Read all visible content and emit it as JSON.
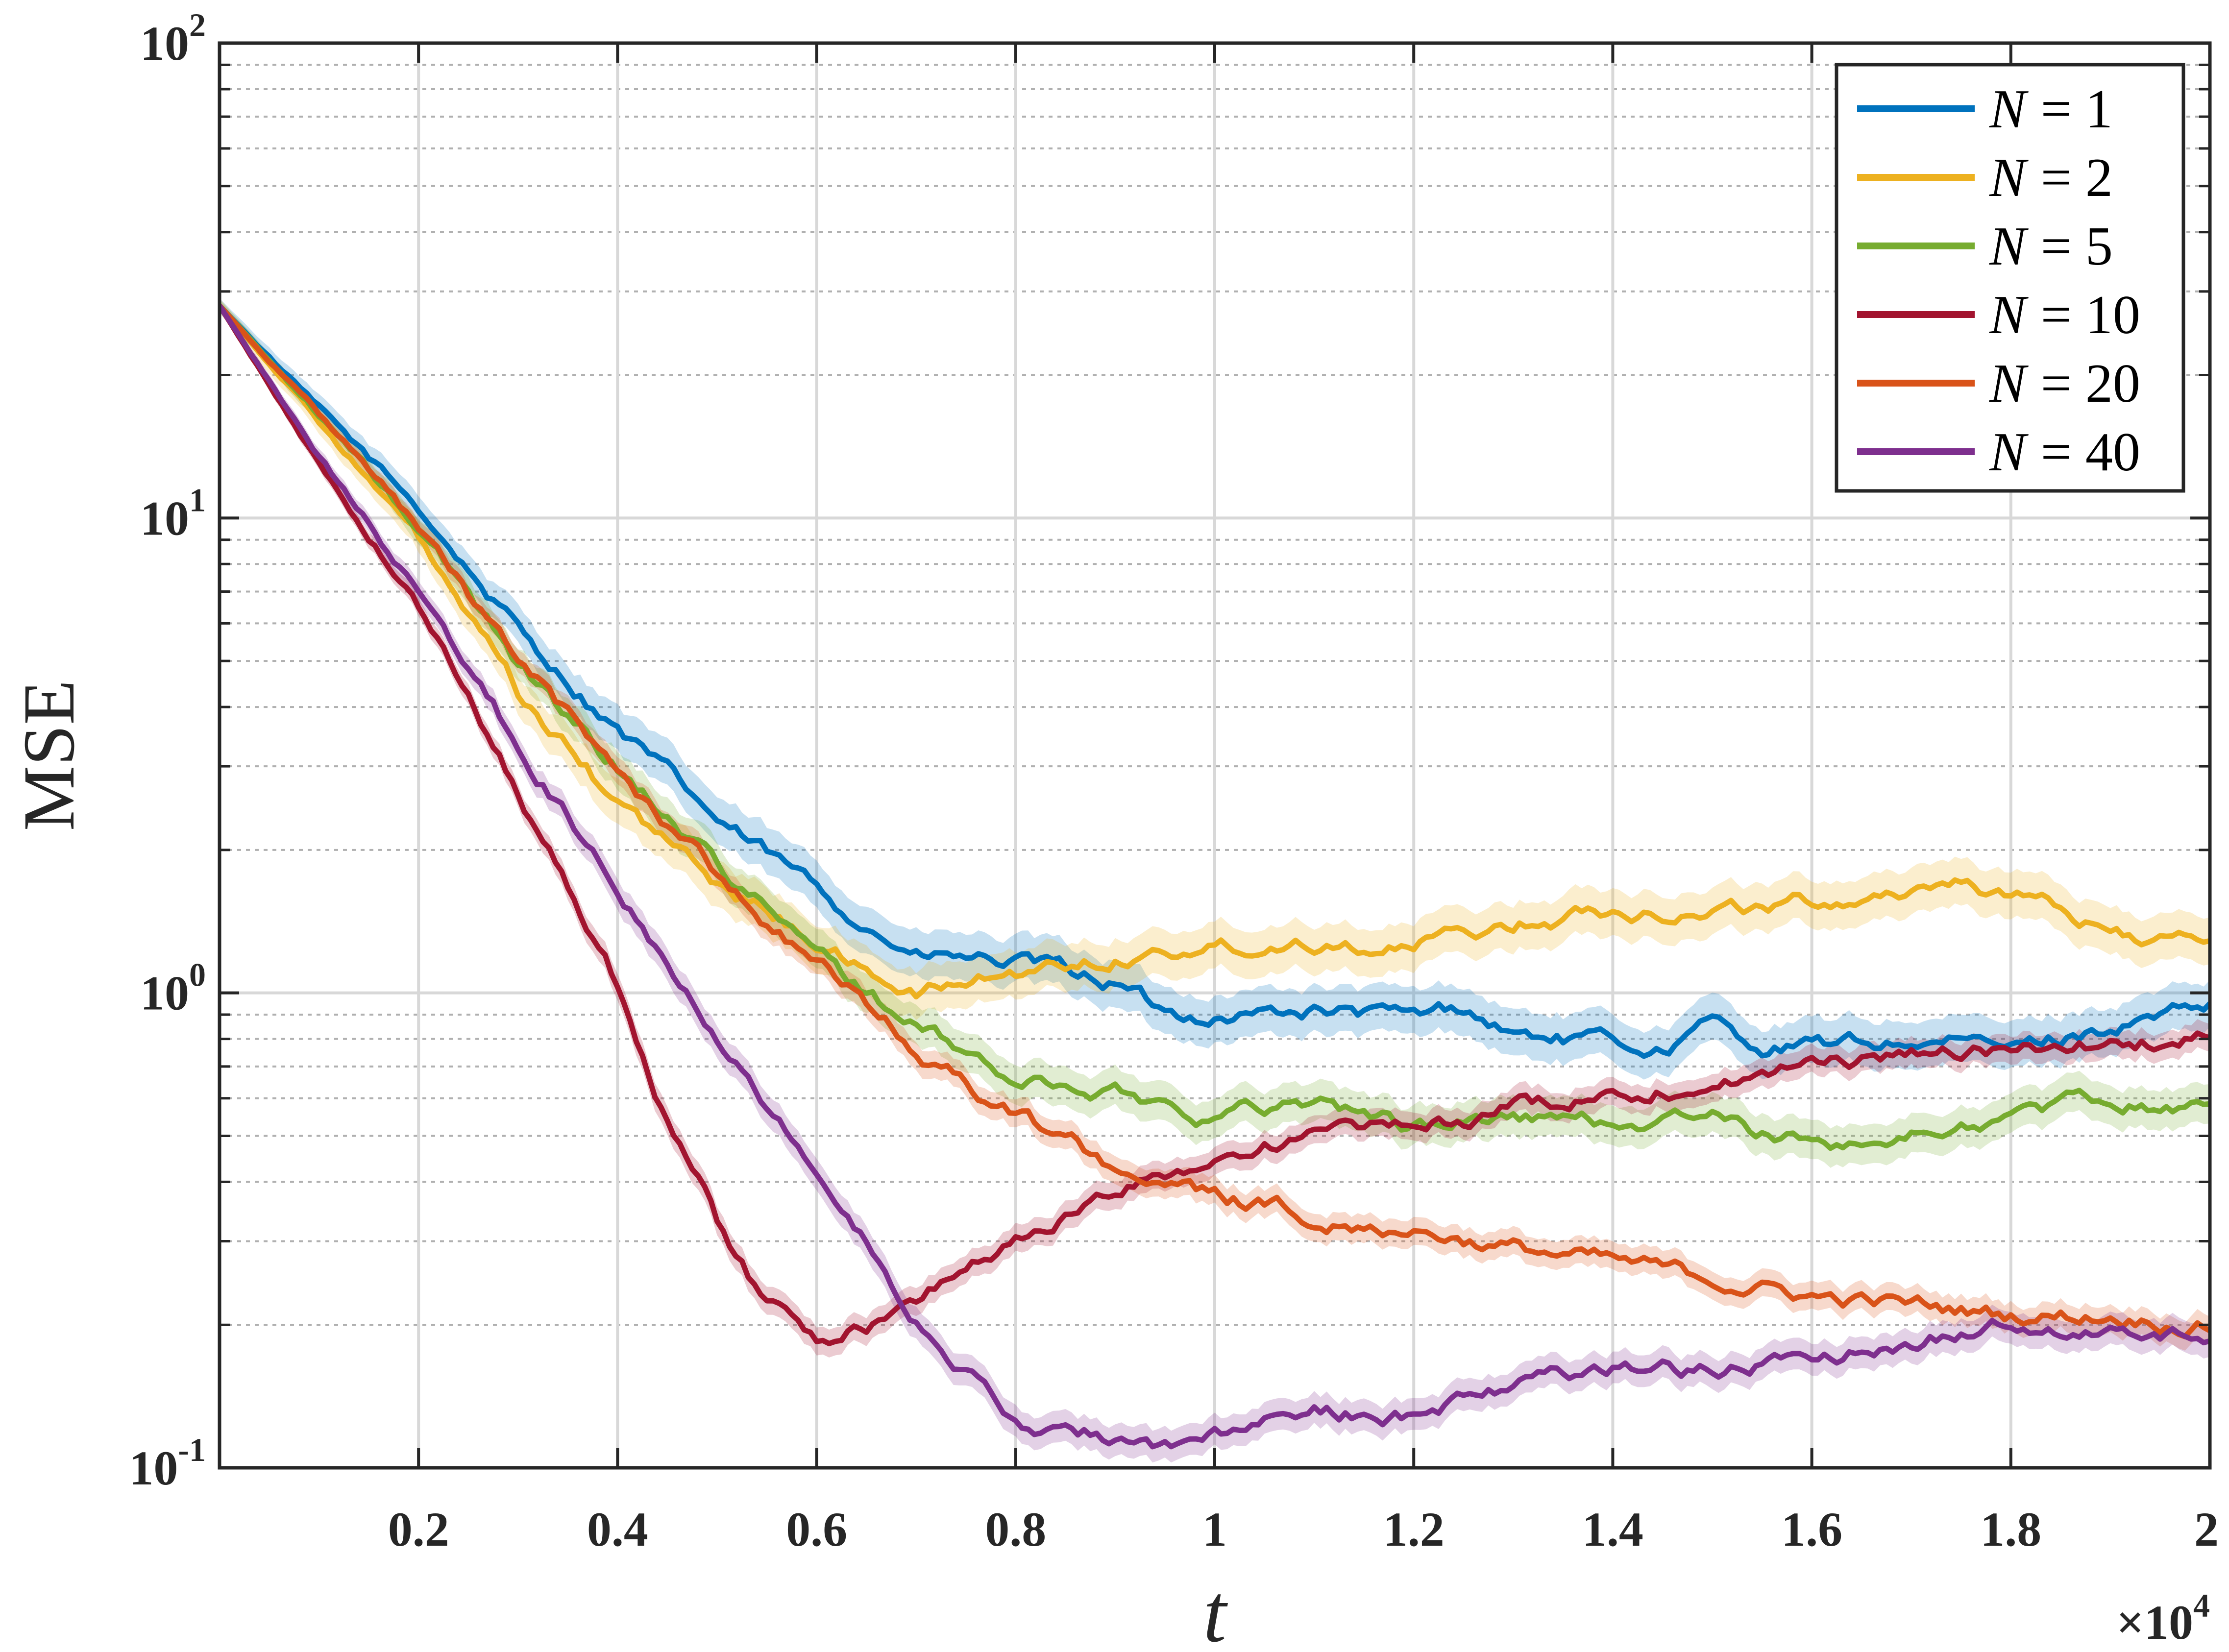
{
  "chart_data": {
    "type": "line",
    "title": "",
    "xlabel": "t",
    "ylabel": "MSE",
    "x_exponent_label": "×10",
    "x_exponent_power": "4",
    "x_scale": "linear",
    "y_scale": "log",
    "xlim": [
      0,
      20000
    ],
    "ylim": [
      0.1,
      100
    ],
    "grid": true,
    "legend_position": "top-right",
    "x_ticks": [
      2000,
      4000,
      6000,
      8000,
      10000,
      12000,
      14000,
      16000,
      18000,
      20000
    ],
    "x_tick_labels": [
      "0.2",
      "0.4",
      "0.6",
      "0.8",
      "1",
      "1.2",
      "1.4",
      "1.6",
      "1.8",
      "2"
    ],
    "y_ticks": [
      {
        "value": 0.1,
        "base": "10",
        "exp": "-1"
      },
      {
        "value": 1,
        "base": "10",
        "exp": "0"
      },
      {
        "value": 10,
        "base": "10",
        "exp": "1"
      },
      {
        "value": 100,
        "base": "10",
        "exp": "2"
      }
    ],
    "series": [
      {
        "name_var": "N",
        "name_eq": "= 1",
        "color": "#0072BD",
        "band": 0.12,
        "points": [
          [
            0,
            28
          ],
          [
            1000,
            17
          ],
          [
            2000,
            10.5
          ],
          [
            3000,
            5.8
          ],
          [
            4000,
            3.6
          ],
          [
            5000,
            2.3
          ],
          [
            6000,
            1.65
          ],
          [
            6500,
            1.4
          ],
          [
            7000,
            1.2
          ],
          [
            8000,
            1.15
          ],
          [
            9000,
            1.05
          ],
          [
            9500,
            0.9
          ],
          [
            10000,
            0.9
          ],
          [
            11000,
            0.92
          ],
          [
            12000,
            0.88
          ],
          [
            12500,
            0.93
          ],
          [
            13000,
            0.82
          ],
          [
            14000,
            0.78
          ],
          [
            14500,
            0.76
          ],
          [
            15000,
            0.86
          ],
          [
            15500,
            0.77
          ],
          [
            16000,
            0.77
          ],
          [
            17000,
            0.79
          ],
          [
            17500,
            0.78
          ],
          [
            18000,
            0.76
          ],
          [
            19000,
            0.85
          ],
          [
            20000,
            0.92
          ]
        ]
      },
      {
        "name_var": "N",
        "name_eq": "= 2",
        "color": "#EDB120",
        "band": 0.12,
        "points": [
          [
            0,
            28
          ],
          [
            1000,
            16
          ],
          [
            2000,
            9
          ],
          [
            3000,
            4.2
          ],
          [
            4000,
            2.5
          ],
          [
            5000,
            1.7
          ],
          [
            6000,
            1.3
          ],
          [
            6500,
            1.1
          ],
          [
            7000,
            1.0
          ],
          [
            7500,
            1.05
          ],
          [
            8000,
            1.1
          ],
          [
            9000,
            1.2
          ],
          [
            10000,
            1.25
          ],
          [
            11000,
            1.3
          ],
          [
            12000,
            1.25
          ],
          [
            13000,
            1.4
          ],
          [
            14000,
            1.5
          ],
          [
            15000,
            1.5
          ],
          [
            16000,
            1.55
          ],
          [
            17000,
            1.65
          ],
          [
            17500,
            1.75
          ],
          [
            18000,
            1.6
          ],
          [
            19000,
            1.35
          ],
          [
            20000,
            1.25
          ]
        ]
      },
      {
        "name_var": "N",
        "name_eq": "= 5",
        "color": "#77AC30",
        "band": 0.1,
        "points": [
          [
            0,
            28
          ],
          [
            1000,
            16.5
          ],
          [
            2000,
            9.5
          ],
          [
            3000,
            5.0
          ],
          [
            4000,
            3.0
          ],
          [
            5000,
            1.9
          ],
          [
            6000,
            1.2
          ],
          [
            7000,
            0.85
          ],
          [
            8000,
            0.65
          ],
          [
            9000,
            0.62
          ],
          [
            10000,
            0.55
          ],
          [
            11000,
            0.6
          ],
          [
            12000,
            0.52
          ],
          [
            13000,
            0.55
          ],
          [
            14000,
            0.53
          ],
          [
            15000,
            0.55
          ],
          [
            15500,
            0.5
          ],
          [
            16000,
            0.48
          ],
          [
            17000,
            0.5
          ],
          [
            18000,
            0.55
          ],
          [
            19000,
            0.6
          ],
          [
            20000,
            0.57
          ]
        ]
      },
      {
        "name_var": "N",
        "name_eq": "= 10",
        "color": "#A2142F",
        "band": 0.07,
        "points": [
          [
            0,
            28
          ],
          [
            1000,
            13
          ],
          [
            2000,
            6.5
          ],
          [
            3000,
            2.7
          ],
          [
            4000,
            1.05
          ],
          [
            4500,
            0.55
          ],
          [
            5000,
            0.33
          ],
          [
            5500,
            0.22
          ],
          [
            6000,
            0.19
          ],
          [
            6500,
            0.2
          ],
          [
            7000,
            0.22
          ],
          [
            7500,
            0.27
          ],
          [
            8000,
            0.3
          ],
          [
            9000,
            0.38
          ],
          [
            10000,
            0.45
          ],
          [
            11000,
            0.5
          ],
          [
            12000,
            0.52
          ],
          [
            13000,
            0.57
          ],
          [
            14000,
            0.62
          ],
          [
            15000,
            0.65
          ],
          [
            16000,
            0.7
          ],
          [
            17000,
            0.75
          ],
          [
            18000,
            0.75
          ],
          [
            19000,
            0.78
          ],
          [
            20000,
            0.8
          ]
        ]
      },
      {
        "name_var": "N",
        "name_eq": "= 20",
        "color": "#D95319",
        "band": 0.07,
        "points": [
          [
            0,
            28
          ],
          [
            1000,
            16.5
          ],
          [
            2000,
            9.5
          ],
          [
            3000,
            5.0
          ],
          [
            4000,
            2.9
          ],
          [
            5000,
            1.8
          ],
          [
            6000,
            1.15
          ],
          [
            7000,
            0.75
          ],
          [
            8000,
            0.55
          ],
          [
            9000,
            0.43
          ],
          [
            10000,
            0.37
          ],
          [
            11000,
            0.34
          ],
          [
            12000,
            0.32
          ],
          [
            13000,
            0.29
          ],
          [
            14000,
            0.27
          ],
          [
            15000,
            0.25
          ],
          [
            16000,
            0.23
          ],
          [
            17000,
            0.22
          ],
          [
            18000,
            0.21
          ],
          [
            19000,
            0.21
          ],
          [
            20000,
            0.2
          ]
        ]
      },
      {
        "name_var": "N",
        "name_eq": "= 40",
        "color": "#7E2F8E",
        "band": 0.08,
        "points": [
          [
            0,
            28
          ],
          [
            1000,
            13.5
          ],
          [
            2000,
            7
          ],
          [
            3000,
            3.3
          ],
          [
            4000,
            1.7
          ],
          [
            5000,
            0.85
          ],
          [
            6000,
            0.42
          ],
          [
            7000,
            0.21
          ],
          [
            7500,
            0.16
          ],
          [
            8000,
            0.125
          ],
          [
            8500,
            0.115
          ],
          [
            9000,
            0.115
          ],
          [
            9500,
            0.11
          ],
          [
            10000,
            0.115
          ],
          [
            11000,
            0.13
          ],
          [
            12000,
            0.13
          ],
          [
            13000,
            0.15
          ],
          [
            14000,
            0.165
          ],
          [
            15000,
            0.16
          ],
          [
            16000,
            0.17
          ],
          [
            17000,
            0.185
          ],
          [
            18000,
            0.2
          ],
          [
            19000,
            0.195
          ],
          [
            20000,
            0.19
          ]
        ]
      }
    ]
  }
}
